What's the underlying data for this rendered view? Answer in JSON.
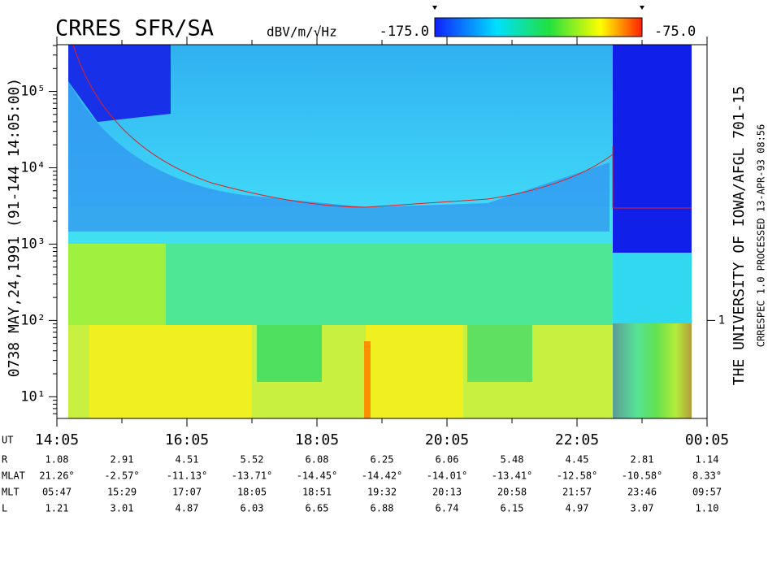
{
  "chart_data": {
    "type": "spectrogram",
    "title": "CRRES SFR/SA",
    "colorbar": {
      "label": "dBV/m/√Hz",
      "lim": [
        -175,
        -75
      ],
      "ticks": [
        {
          "value": -175,
          "label": "-175.0"
        },
        {
          "value": -75,
          "label": "-75.0"
        }
      ]
    },
    "left_label": "0738   MAY,24,1991   (91-144 14:05:00)",
    "right_label": "THE UNIVERSITY OF IOWA/AFGL 701-15",
    "right_sublabel": "CRRESPEC 1.0   PROCESSED 13-APR-93   08:56",
    "xlabel": "UT",
    "xlim": [
      0,
      600
    ],
    "xticks": [
      {
        "value": 0,
        "label": "14:05"
      },
      {
        "value": 120,
        "label": "16:05"
      },
      {
        "value": 240,
        "label": "18:05"
      },
      {
        "value": 360,
        "label": "20:05"
      },
      {
        "value": 480,
        "label": "22:05"
      },
      {
        "value": 600,
        "label": "00:05"
      }
    ],
    "log_y": true,
    "ylim": [
      5.2,
      410000
    ],
    "yticks": [
      {
        "value": 10,
        "label": "10¹"
      },
      {
        "value": 100,
        "label": "10²"
      },
      {
        "value": 1000,
        "label": "10³"
      },
      {
        "value": 10000,
        "label": "10⁴"
      },
      {
        "value": 100000,
        "label": "10⁵"
      }
    ],
    "y2lim": [
      0.052,
      4100
    ],
    "y2ticks": [
      1
    ],
    "ephemeris": {
      "rows": [
        {
          "name": "R",
          "values": [
            "1.08",
            "2.91",
            "4.51",
            "5.52",
            "6.08",
            "6.25",
            "6.06",
            "5.48",
            "4.45",
            "2.81",
            "1.14"
          ]
        },
        {
          "name": "MLAT",
          "values": [
            "21.26°",
            "-2.57°",
            "-11.13°",
            "-13.71°",
            "-14.45°",
            "-14.42°",
            "-14.01°",
            "-13.41°",
            "-12.58°",
            "-10.58°",
            "8.33°"
          ]
        },
        {
          "name": "MLT",
          "values": [
            "05:47",
            "15:29",
            "17:07",
            "18:05",
            "18:51",
            "19:32",
            "20:13",
            "20:58",
            "21:57",
            "23:46",
            "09:57"
          ]
        },
        {
          "name": "L",
          "values": [
            "1.21",
            "3.01",
            "4.87",
            "6.03",
            "6.65",
            "6.88",
            "6.74",
            "6.15",
            "4.97",
            "3.07",
            "1.10"
          ]
        }
      ]
    }
  }
}
